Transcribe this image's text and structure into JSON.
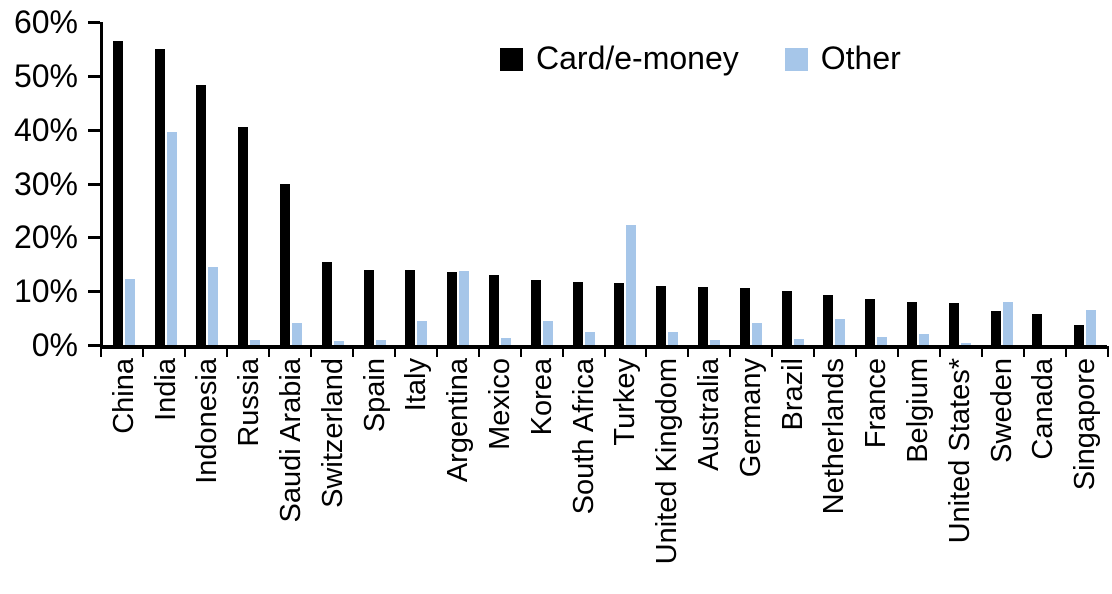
{
  "chart_data": {
    "type": "bar",
    "title": "",
    "xlabel": "",
    "ylabel": "",
    "ylim": [
      0,
      60
    ],
    "ytick_step": 10,
    "ytick_labels": [
      "0%",
      "10%",
      "20%",
      "30%",
      "40%",
      "50%",
      "60%"
    ],
    "grid": false,
    "legend_position": "top-center",
    "categories": [
      "China",
      "India",
      "Indonesia",
      "Russia",
      "Saudi Arabia",
      "Switzerland",
      "Spain",
      "Italy",
      "Argentina",
      "Mexico",
      "Korea",
      "South Africa",
      "Turkey",
      "United Kingdom",
      "Australia",
      "Germany",
      "Brazil",
      "Netherlands",
      "France",
      "Belgium",
      "United States*",
      "Sweden",
      "Canada",
      "Singapore"
    ],
    "series": [
      {
        "name": "Card/e-money",
        "color": "#000000",
        "values": [
          56.5,
          55,
          48.3,
          40.5,
          30,
          15.5,
          14,
          14,
          13.5,
          13,
          12,
          11.7,
          11.5,
          11,
          10.7,
          10.5,
          10,
          9.3,
          8.5,
          8,
          7.8,
          6.4,
          5.8,
          3.8
        ]
      },
      {
        "name": "Other",
        "color": "#A6C6E9",
        "values": [
          12.3,
          39.6,
          14.4,
          1,
          4,
          0.8,
          1,
          4.5,
          13.8,
          1.3,
          4.5,
          2.4,
          22.3,
          2.4,
          1,
          4,
          1.2,
          4.8,
          1.5,
          2,
          0.3,
          8,
          0,
          6.5
        ]
      }
    ]
  }
}
